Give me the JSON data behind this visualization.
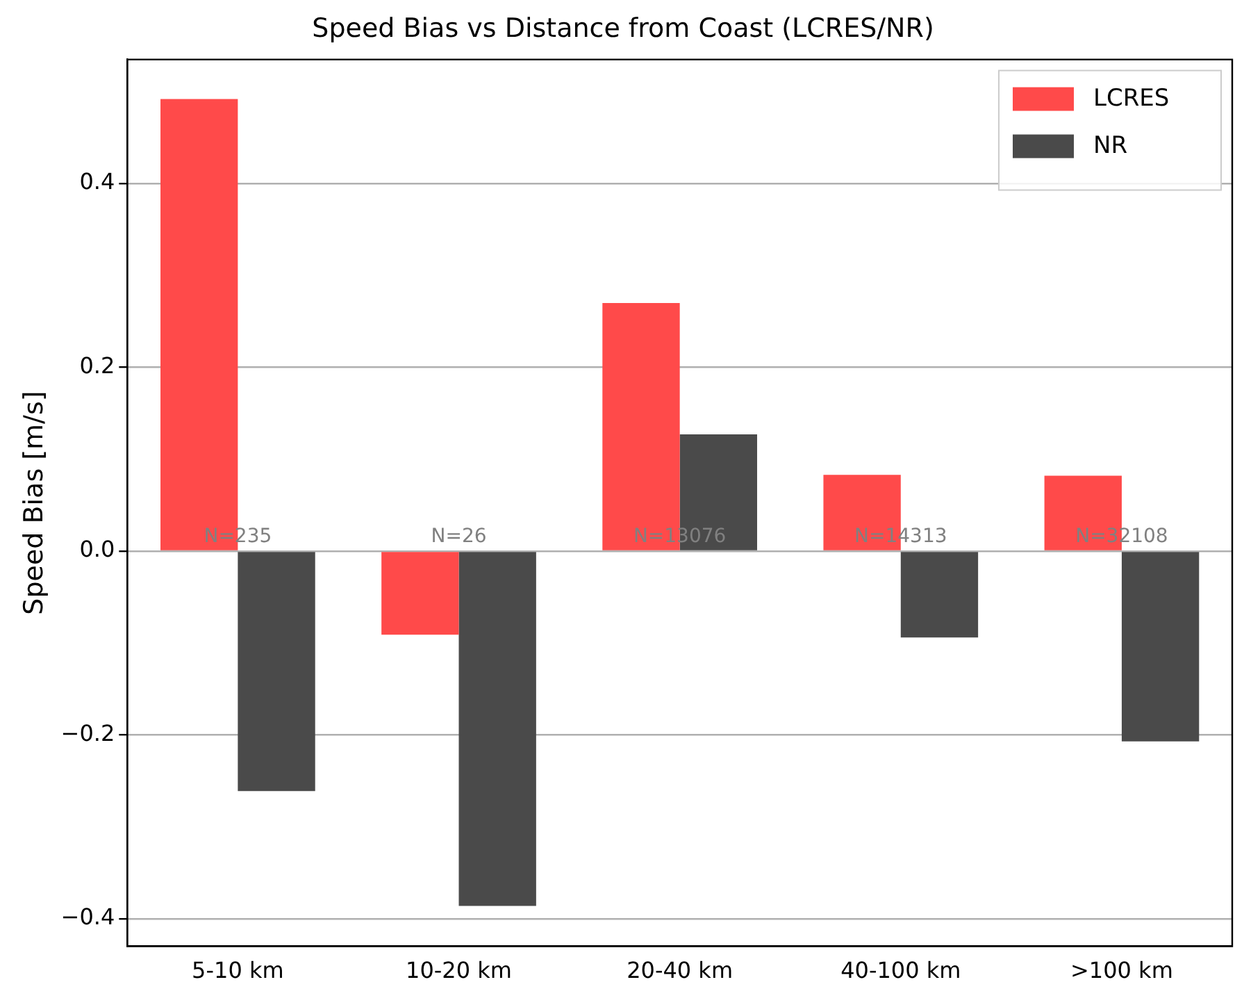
{
  "chart_data": {
    "type": "bar",
    "title": "Speed Bias vs Distance from Coast (LCRES/NR)",
    "ylabel": "Speed Bias [m/s]",
    "categories": [
      "5-10 km",
      "10-20 km",
      "20-40 km",
      "40-100 km",
      ">100 km"
    ],
    "series": [
      {
        "name": "LCRES",
        "color": "#ff4a4a",
        "values": [
          0.492,
          -0.091,
          0.27,
          0.083,
          0.082
        ]
      },
      {
        "name": "NR",
        "color": "#4a4a4a",
        "values": [
          -0.261,
          -0.386,
          0.127,
          -0.094,
          -0.207
        ]
      }
    ],
    "ylim": [
      -0.43,
      0.535
    ],
    "yticks": [
      {
        "value": -0.4,
        "label": "−0.4"
      },
      {
        "value": -0.2,
        "label": "−0.2"
      },
      {
        "value": 0,
        "label": "0.0"
      },
      {
        "value": 0.2,
        "label": "0.2"
      },
      {
        "value": 0.4,
        "label": "0.4"
      }
    ],
    "grid": "y",
    "legend": "top right",
    "annotations": [
      "N=235",
      "N=26",
      "N=13076",
      "N=14313",
      "N=32108"
    ]
  }
}
